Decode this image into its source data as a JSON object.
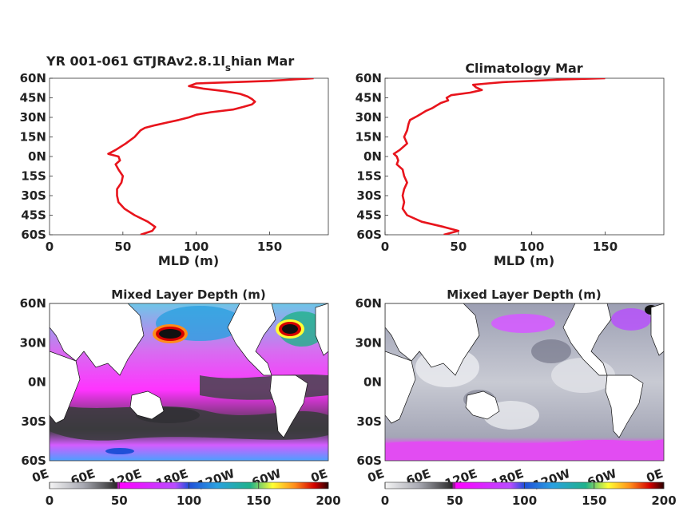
{
  "chart_data": [
    {
      "type": "line",
      "title_main": "YR 001-061 GTJRAv2.8.1l",
      "title_sub": "s",
      "title_tail": "hian Mar",
      "xlabel": "MLD (m)",
      "xlim": [
        0,
        190
      ],
      "ylim": [
        -60,
        60
      ],
      "xticks": [
        "0",
        "50",
        "100",
        "150"
      ],
      "yticks": [
        "60N",
        "45N",
        "30N",
        "15N",
        "0N",
        "15S",
        "30S",
        "45S",
        "60S"
      ],
      "color": "#e8141c",
      "lat": [
        60,
        58,
        56,
        54,
        52,
        50,
        48,
        46,
        44,
        42,
        40,
        38,
        36,
        34,
        32,
        30,
        28,
        26,
        24,
        22,
        20,
        15,
        10,
        5,
        2,
        0,
        -3,
        -6,
        -10,
        -15,
        -20,
        -25,
        -30,
        -35,
        -40,
        -45,
        -50,
        -54,
        -57,
        -60
      ],
      "mld": [
        180,
        150,
        100,
        95,
        105,
        120,
        130,
        135,
        138,
        140,
        138,
        132,
        125,
        110,
        100,
        95,
        88,
        80,
        72,
        65,
        62,
        58,
        52,
        45,
        40,
        47,
        48,
        45,
        47,
        50,
        49,
        46,
        46,
        47,
        51,
        58,
        67,
        72,
        70,
        62
      ]
    },
    {
      "type": "line",
      "title": "Climatology Mar",
      "xlabel": "MLD (m)",
      "xlim": [
        0,
        190
      ],
      "ylim": [
        -60,
        60
      ],
      "xticks": [
        "0",
        "50",
        "100",
        "150"
      ],
      "yticks": [
        "60N",
        "45N",
        "30N",
        "15N",
        "0N",
        "15S",
        "30S",
        "45S",
        "60S"
      ],
      "color": "#e8141c",
      "lat": [
        60,
        59,
        58,
        57,
        56,
        55,
        53,
        51,
        49,
        47,
        45,
        43,
        41,
        39,
        37,
        35,
        33,
        31,
        28,
        25,
        20,
        15,
        10,
        5,
        2,
        0,
        -3,
        -6,
        -10,
        -15,
        -20,
        -25,
        -30,
        -35,
        -40,
        -45,
        -50,
        -54,
        -57,
        -60
      ],
      "mld": [
        150,
        120,
        100,
        80,
        70,
        60,
        62,
        66,
        58,
        45,
        42,
        43,
        38,
        35,
        32,
        28,
        25,
        22,
        17,
        16,
        15,
        13,
        15,
        10,
        6,
        8,
        9,
        8,
        12,
        13,
        15,
        13,
        12,
        13,
        12,
        15,
        25,
        40,
        50,
        40
      ]
    },
    {
      "type": "heatmap",
      "title": "Mixed Layer Depth (m)",
      "xticks": [
        "0E",
        "60E",
        "120E",
        "180E",
        "120W",
        "60W",
        "0E"
      ],
      "yticks": [
        "60N",
        "30N",
        "0N",
        "30S",
        "60S"
      ],
      "colorbar_ticks": [
        "0",
        "50",
        "100",
        "150",
        "200"
      ],
      "clim": [
        0,
        200
      ]
    },
    {
      "type": "heatmap",
      "title": "Mixed Layer Depth (m)",
      "xticks": [
        "0E",
        "60E",
        "120E",
        "180E",
        "120W",
        "60W",
        "0E"
      ],
      "yticks": [
        "60N",
        "30N",
        "0N",
        "30S",
        "60S"
      ],
      "colorbar_ticks": [
        "0",
        "50",
        "100",
        "150",
        "200"
      ],
      "clim": [
        0,
        200
      ]
    }
  ]
}
